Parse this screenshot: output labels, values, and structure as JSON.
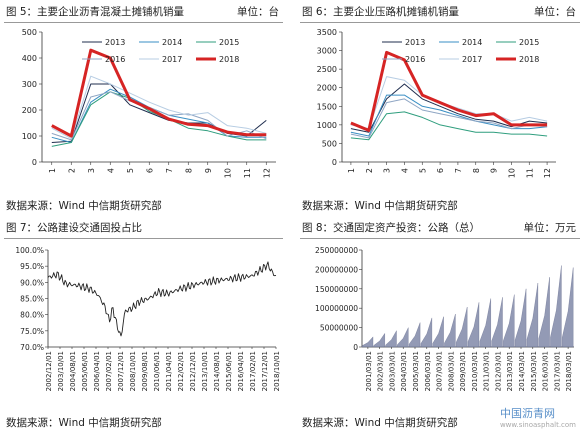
{
  "chart_data": [
    {
      "type": "line",
      "title": "图 5：主要企业沥青混凝土摊铺机销量",
      "unit": "单位：台",
      "source": "数据来源：Wind   中信期货研究部",
      "categories": [
        "1",
        "2",
        "3",
        "4",
        "5",
        "6",
        "7",
        "8",
        "9",
        "10",
        "11",
        "12"
      ],
      "ylim": [
        0,
        500
      ],
      "yticks": [
        0,
        100,
        200,
        300,
        400,
        500
      ],
      "legend": [
        "2013",
        "2014",
        "2015",
        "2016",
        "2017",
        "2018"
      ],
      "series": [
        {
          "name": "2013",
          "color": "#1f2d4e",
          "width": 1,
          "values": [
            75,
            80,
            300,
            300,
            220,
            190,
            160,
            150,
            150,
            110,
            100,
            160
          ]
        },
        {
          "name": "2014",
          "color": "#3a8fc4",
          "width": 1,
          "values": [
            95,
            75,
            230,
            280,
            250,
            210,
            180,
            165,
            150,
            100,
            95,
            95
          ]
        },
        {
          "name": "2015",
          "color": "#2f9e7e",
          "width": 1,
          "values": [
            60,
            75,
            220,
            270,
            245,
            195,
            165,
            130,
            120,
            100,
            85,
            85
          ]
        },
        {
          "name": "2016",
          "color": "#8fa6c4",
          "width": 1,
          "values": [
            110,
            85,
            250,
            270,
            235,
            210,
            180,
            185,
            160,
            100,
            120,
            90
          ]
        },
        {
          "name": "2017",
          "color": "#b7cde3",
          "width": 1,
          "values": [
            130,
            90,
            330,
            300,
            265,
            230,
            200,
            180,
            190,
            140,
            130,
            110
          ]
        },
        {
          "name": "2018",
          "color": "#d62424",
          "width": 3,
          "values": [
            140,
            100,
            430,
            400,
            240,
            205,
            165,
            145,
            140,
            115,
            105,
            105
          ]
        }
      ]
    },
    {
      "type": "line",
      "title": "图 6：主要企业压路机摊铺机销量",
      "unit": "单位：台",
      "source": "数据来源：Wind   中信期货研究部",
      "categories": [
        "1",
        "2",
        "3",
        "4",
        "5",
        "6",
        "7",
        "8",
        "9",
        "10",
        "11",
        "12"
      ],
      "ylim": [
        0,
        3500
      ],
      "yticks": [
        0,
        500,
        1000,
        1500,
        2000,
        2500,
        3000,
        3500
      ],
      "legend": [
        "2013",
        "2014",
        "2015",
        "2016",
        "2017",
        "2018"
      ],
      "series": [
        {
          "name": "2013",
          "color": "#1f2d4e",
          "width": 1,
          "values": [
            900,
            800,
            1700,
            2100,
            1700,
            1500,
            1300,
            1150,
            1100,
            950,
            1100,
            1050
          ]
        },
        {
          "name": "2014",
          "color": "#3a8fc4",
          "width": 1,
          "values": [
            800,
            700,
            1800,
            1800,
            1500,
            1400,
            1250,
            1100,
            1000,
            900,
            900,
            950
          ]
        },
        {
          "name": "2015",
          "color": "#2f9e7e",
          "width": 1,
          "values": [
            650,
            600,
            1300,
            1350,
            1200,
            1000,
            900,
            800,
            800,
            750,
            750,
            700
          ]
        },
        {
          "name": "2016",
          "color": "#8fa6c4",
          "width": 1,
          "values": [
            750,
            650,
            1600,
            1700,
            1400,
            1300,
            1200,
            1100,
            1050,
            900,
            1000,
            950
          ]
        },
        {
          "name": "2017",
          "color": "#b7cde3",
          "width": 1,
          "values": [
            1000,
            900,
            2300,
            2200,
            1800,
            1600,
            1450,
            1300,
            1300,
            1100,
            1200,
            1100
          ]
        },
        {
          "name": "2018",
          "color": "#d62424",
          "width": 3,
          "values": [
            1050,
            850,
            2950,
            2750,
            1800,
            1600,
            1400,
            1250,
            1300,
            1000,
            1000,
            1000
          ]
        }
      ]
    },
    {
      "type": "line",
      "title": "图 7：公路建设交通固投占比",
      "source": "数据来源：Wind   中信期货研究部",
      "ylim": [
        70,
        100
      ],
      "yticks": [
        "70.0%",
        "75.0%",
        "80.0%",
        "85.0%",
        "90.0%",
        "95.0%",
        "100.0%"
      ],
      "xticks": [
        "2002/12/01",
        "2003/10/01",
        "2004/08/01",
        "2005/06/01",
        "2006/04/01",
        "2007/02/01",
        "2007/12/01",
        "2008/10/01",
        "2009/08/01",
        "2010/06/01",
        "2011/04/01",
        "2012/02/01",
        "2012/12/01",
        "2013/10/01",
        "2014/08/01",
        "2015/06/01",
        "2016/04/01",
        "2017/02/01",
        "2017/12/01",
        "2018/10/01"
      ],
      "color": "#222222",
      "anchors": [
        [
          0,
          91.5
        ],
        [
          0.8,
          92.5
        ],
        [
          1.5,
          89.5
        ],
        [
          2.5,
          89
        ],
        [
          3.5,
          88
        ],
        [
          4.2,
          86
        ],
        [
          4.8,
          82
        ],
        [
          5.1,
          78
        ],
        [
          5.4,
          82
        ],
        [
          5.8,
          76
        ],
        [
          6.1,
          73
        ],
        [
          6.4,
          81
        ],
        [
          7.0,
          82
        ],
        [
          7.6,
          84
        ],
        [
          8.4,
          85
        ],
        [
          9.2,
          87
        ],
        [
          10.0,
          86.5
        ],
        [
          11.0,
          88
        ],
        [
          12.0,
          89
        ],
        [
          13.0,
          90
        ],
        [
          14.0,
          90.5
        ],
        [
          15.0,
          91
        ],
        [
          16.0,
          91.5
        ],
        [
          17.0,
          92
        ],
        [
          17.8,
          94
        ],
        [
          18.3,
          95.5
        ],
        [
          18.8,
          92.5
        ],
        [
          19.0,
          92
        ]
      ],
      "noise": 2.2
    },
    {
      "type": "area",
      "title": "图 8：交通固定资产投资：公路（总）",
      "unit": "单位：万元",
      "source": "数据来源：Wind   中信期货研究部",
      "ylim": [
        0,
        250000000
      ],
      "yticks": [
        "0",
        "50000000",
        "100000000",
        "150000000",
        "200000000",
        "250000000"
      ],
      "xticks": [
        "2001/03/01",
        "2002/03/01",
        "2003/03/01",
        "2004/03/01",
        "2005/03/01",
        "2006/03/01",
        "2007/03/01",
        "2008/03/01",
        "2009/03/01",
        "2010/03/01",
        "2011/03/01",
        "2012/03/01",
        "2013/03/01",
        "2014/03/01",
        "2015/03/01",
        "2016/03/01",
        "2017/03/01",
        "2018/03/01"
      ],
      "color": "#8088a8",
      "annual_totals": [
        26000000,
        35000000,
        42000000,
        50000000,
        63000000,
        75000000,
        78000000,
        85000000,
        103000000,
        115000000,
        125000000,
        128000000,
        135000000,
        150000000,
        165000000,
        180000000,
        210000000,
        205000000
      ]
    }
  ],
  "watermark": {
    "name": "中国沥青网",
    "url": "www.sinoasphalt.com"
  }
}
